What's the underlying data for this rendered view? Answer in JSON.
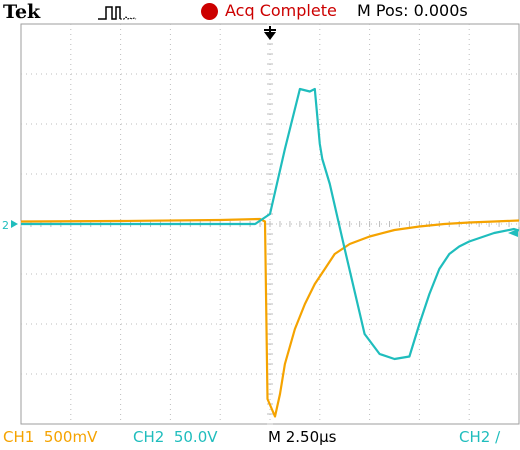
{
  "header": {
    "brand": "Tek",
    "trigger_state_icon": "pulse-waveform-icon",
    "acq_status": "Acq Complete",
    "acq_status_color": "#cc0000",
    "position_readout": "M Pos: 0.000s"
  },
  "scope": {
    "grid_divisions": {
      "horizontal": 10,
      "vertical": 8
    },
    "background": "#ffffff",
    "grid_color": "#bdbdbd",
    "ch2_ground_marker": "2",
    "trigger_position_icon": "trigger-arrow-icon"
  },
  "channels": [
    {
      "name": "CH1",
      "scale": "500mV",
      "color": "#f5a300"
    },
    {
      "name": "CH2",
      "scale": "50.0V",
      "color": "#1fbdbd"
    }
  ],
  "footer": {
    "ch1_text": "CH1  500mV",
    "ch2_text": "CH2  50.0V",
    "timebase_text": "M 2.50µs",
    "trigger_text": "CH2 ∕"
  },
  "chart_data": {
    "type": "line",
    "x_unit": "div",
    "y_unit": "div",
    "xlim": [
      -5,
      5
    ],
    "ylim": [
      -4,
      4
    ],
    "series": [
      {
        "name": "CH1",
        "color": "#f5a300",
        "x": [
          -5,
          -3,
          -1,
          -0.2,
          -0.1,
          -0.05,
          0.1,
          0.2,
          0.3,
          0.5,
          0.7,
          0.9,
          1.1,
          1.3,
          1.6,
          2.0,
          2.5,
          3.0,
          3.5,
          4.0,
          4.5,
          5.0
        ],
        "y": [
          0.05,
          0.06,
          0.08,
          0.1,
          0.05,
          -3.5,
          -3.85,
          -3.4,
          -2.8,
          -2.1,
          -1.6,
          -1.2,
          -0.9,
          -0.6,
          -0.4,
          -0.25,
          -0.12,
          -0.05,
          0.0,
          0.03,
          0.05,
          0.07
        ]
      },
      {
        "name": "CH2",
        "color": "#1fbdbd",
        "x": [
          -5,
          -2,
          -0.3,
          0.0,
          0.3,
          0.6,
          0.8,
          0.9,
          1.0,
          1.05,
          1.2,
          1.5,
          1.9,
          2.2,
          2.5,
          2.8,
          3.0,
          3.2,
          3.4,
          3.6,
          3.8,
          4.0,
          4.5,
          4.9,
          5.0
        ],
        "y": [
          0.0,
          0.0,
          0.0,
          0.2,
          1.5,
          2.7,
          2.65,
          2.7,
          1.6,
          1.3,
          0.8,
          -0.5,
          -2.2,
          -2.6,
          -2.7,
          -2.65,
          -2.0,
          -1.4,
          -0.9,
          -0.6,
          -0.45,
          -0.35,
          -0.18,
          -0.1,
          -0.13
        ]
      }
    ]
  }
}
